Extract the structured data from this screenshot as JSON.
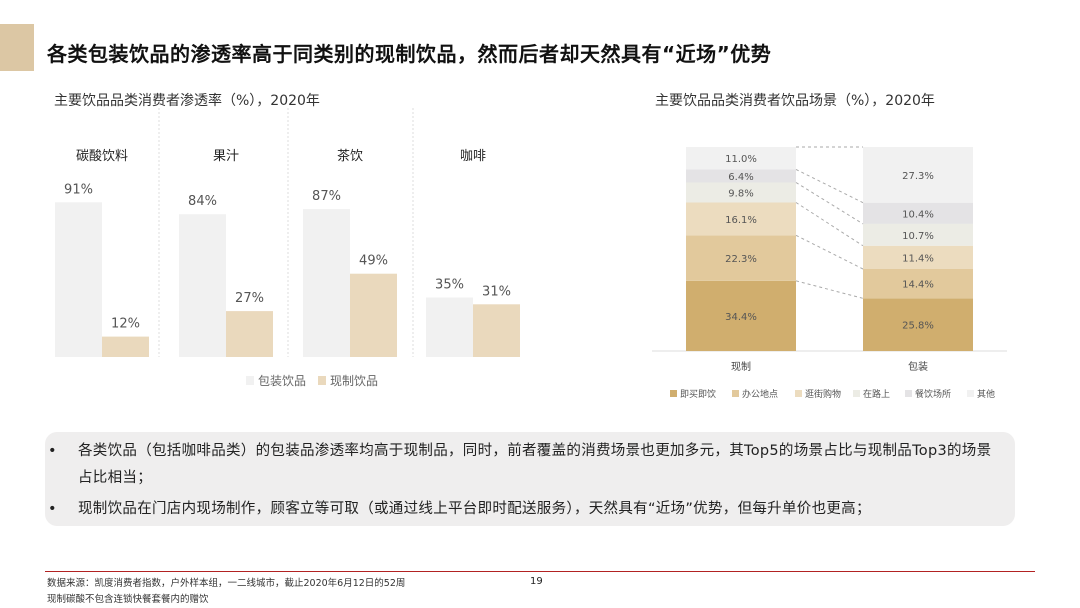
{
  "title": "各类包装饮品的渗透率高于同类别的现制饮品，然而后者却天然具有“近场”优势",
  "colors": {
    "accent": "#dcc7a4",
    "packaged": "#f1f1f1",
    "fresh": "#ead9bd",
    "footer_line": "#b22222"
  },
  "chart_data": [
    {
      "type": "bar",
      "title": "主要饮品品类消费者渗透率（%），2020年",
      "categories": [
        "碳酸饮料",
        "果汁",
        "茶饮",
        "咖啡"
      ],
      "series": [
        {
          "name": "包装饮品",
          "values": [
            91,
            84,
            87,
            35
          ],
          "color": "#f1f1f1"
        },
        {
          "name": "现制饮品",
          "values": [
            12,
            27,
            49,
            31
          ],
          "color": "#ead9bd"
        }
      ],
      "value_suffix": "%",
      "legend": "bottom",
      "ylim": [
        0,
        100
      ]
    },
    {
      "type": "bar",
      "stacked": true,
      "title": "主要饮品品类消费者饮品场景（%），2020年",
      "categories": [
        "现制",
        "包装"
      ],
      "series": [
        {
          "name": "即买即饮",
          "values": [
            34.4,
            25.8
          ],
          "color": "#d0ae6e"
        },
        {
          "name": "办公地点",
          "values": [
            22.3,
            14.4
          ],
          "color": "#e2c99c"
        },
        {
          "name": "逛街购物",
          "values": [
            16.1,
            11.4
          ],
          "color": "#ecdcbf"
        },
        {
          "name": "在路上",
          "values": [
            9.8,
            10.7
          ],
          "color": "#ecece5"
        },
        {
          "name": "餐饮场所",
          "values": [
            6.4,
            10.4
          ],
          "color": "#e4e3e5"
        },
        {
          "name": "其他",
          "values": [
            11.0,
            27.3
          ],
          "color": "#f1f1f1"
        }
      ],
      "value_suffix": "%",
      "legend": "bottom",
      "ylim": [
        0,
        100
      ]
    }
  ],
  "bullets": [
    "各类饮品（包括咖啡品类）的包装品渗透率均高于现制品，同时，前者覆盖的消费场景也更加多元，其Top5的场景占比与现制品Top3的场景占比相当；",
    "现制饮品在门店内现场制作，顾客立等可取（或通过线上平台即时配送服务），天然具有“近场”优势，但每升单价也更高；"
  ],
  "bullet_symbol": "•",
  "footer": {
    "source": "数据来源：凯度消费者指数，户外样本组，一二线城市，截止2020年6月12日的52周",
    "note": "现制碳酸不包含连锁快餐套餐内的赠饮",
    "page": "19"
  }
}
